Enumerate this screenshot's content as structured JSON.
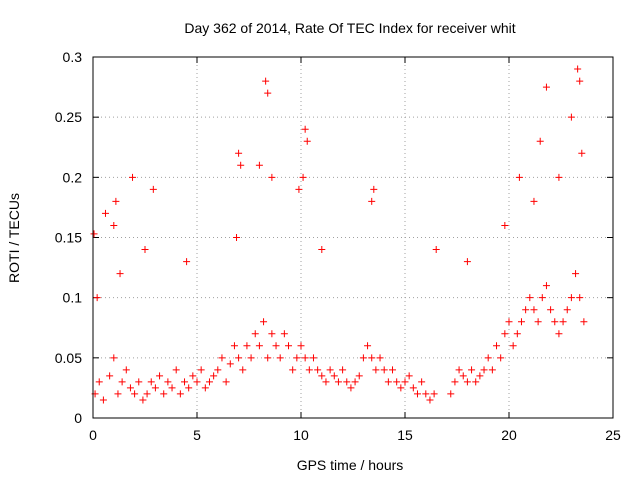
{
  "chart_data": {
    "type": "scatter",
    "title": "Day 362 of 2014, Rate Of TEC Index for receiver whit",
    "xlabel": "GPS time / hours",
    "ylabel": "ROTI / TECUs",
    "xlim": [
      0,
      25
    ],
    "ylim": [
      0,
      0.3
    ],
    "x_ticks": [
      0,
      5,
      10,
      15,
      20,
      25
    ],
    "x_tick_labels": [
      "0",
      "5",
      "10",
      "15",
      "20",
      "25"
    ],
    "y_ticks": [
      0,
      0.05,
      0.1,
      0.15,
      0.2,
      0.25,
      0.3
    ],
    "y_tick_labels": [
      "0",
      "0.05",
      "0.1",
      "0.15",
      "0.2",
      "0.25",
      "0.3"
    ],
    "grid": true,
    "marker": "+",
    "series": [
      {
        "name": "ROTI",
        "color": "#ff0000",
        "x": [
          0.1,
          0.3,
          0.5,
          0.8,
          1.0,
          1.2,
          1.4,
          1.6,
          1.8,
          2.0,
          2.2,
          2.4,
          2.6,
          2.8,
          3.0,
          3.2,
          3.4,
          3.6,
          3.8,
          4.0,
          4.2,
          4.4,
          4.6,
          4.8,
          5.0,
          5.2,
          5.4,
          5.6,
          5.8,
          6.0,
          6.2,
          6.4,
          6.6,
          6.8,
          7.0,
          7.2,
          7.4,
          7.6,
          7.8,
          8.0,
          8.2,
          8.4,
          8.6,
          8.8,
          9.0,
          9.2,
          9.4,
          9.6,
          9.8,
          10.0,
          10.2,
          10.4,
          10.6,
          10.8,
          11.0,
          11.2,
          11.4,
          11.6,
          11.8,
          12.0,
          12.2,
          12.4,
          12.6,
          12.8,
          13.0,
          13.2,
          13.4,
          13.6,
          13.8,
          14.0,
          14.2,
          14.4,
          14.6,
          14.8,
          15.0,
          15.2,
          15.4,
          15.6,
          15.8,
          16.0,
          16.2,
          16.4,
          17.2,
          17.4,
          17.6,
          17.8,
          18.0,
          18.2,
          18.4,
          18.6,
          18.8,
          19.0,
          19.2,
          19.4,
          19.6,
          19.8,
          20.0,
          20.2,
          20.4,
          20.6,
          20.8,
          21.0,
          21.2,
          21.4,
          21.6,
          21.8,
          22.0,
          22.2,
          22.4,
          22.6,
          22.8,
          23.0,
          23.2,
          23.4,
          23.6,
          0.05,
          0.6,
          1.1,
          1.9,
          2.9,
          7.0,
          7.1,
          8.3,
          8.4,
          10.2,
          10.3,
          13.5,
          21.5,
          21.8,
          23.3,
          23.4,
          0.2,
          1.0,
          1.3,
          2.5,
          4.5,
          6.9,
          8.0,
          8.6,
          9.9,
          10.1,
          11.0,
          13.4,
          16.5,
          18.0,
          19.8,
          20.5,
          21.2,
          22.4,
          23.0,
          23.5
        ],
        "y": [
          0.02,
          0.03,
          0.015,
          0.035,
          0.05,
          0.02,
          0.03,
          0.04,
          0.025,
          0.02,
          0.03,
          0.015,
          0.02,
          0.03,
          0.025,
          0.035,
          0.02,
          0.03,
          0.025,
          0.04,
          0.02,
          0.03,
          0.025,
          0.035,
          0.03,
          0.04,
          0.025,
          0.03,
          0.035,
          0.04,
          0.05,
          0.03,
          0.045,
          0.06,
          0.05,
          0.04,
          0.06,
          0.05,
          0.07,
          0.06,
          0.08,
          0.05,
          0.07,
          0.06,
          0.05,
          0.07,
          0.06,
          0.04,
          0.05,
          0.06,
          0.05,
          0.04,
          0.05,
          0.04,
          0.035,
          0.03,
          0.04,
          0.035,
          0.03,
          0.04,
          0.03,
          0.025,
          0.03,
          0.035,
          0.05,
          0.06,
          0.05,
          0.04,
          0.05,
          0.04,
          0.03,
          0.04,
          0.03,
          0.025,
          0.03,
          0.035,
          0.025,
          0.02,
          0.03,
          0.02,
          0.015,
          0.02,
          0.02,
          0.03,
          0.04,
          0.035,
          0.03,
          0.04,
          0.03,
          0.035,
          0.04,
          0.05,
          0.04,
          0.06,
          0.05,
          0.07,
          0.08,
          0.06,
          0.07,
          0.08,
          0.09,
          0.1,
          0.09,
          0.08,
          0.1,
          0.11,
          0.09,
          0.08,
          0.07,
          0.08,
          0.09,
          0.1,
          0.12,
          0.1,
          0.08,
          0.153,
          0.17,
          0.18,
          0.2,
          0.19,
          0.22,
          0.21,
          0.28,
          0.27,
          0.24,
          0.23,
          0.19,
          0.23,
          0.275,
          0.29,
          0.28,
          0.1,
          0.16,
          0.12,
          0.14,
          0.13,
          0.15,
          0.21,
          0.2,
          0.19,
          0.2,
          0.14,
          0.18,
          0.14,
          0.13,
          0.16,
          0.2,
          0.18,
          0.2,
          0.25,
          0.22
        ]
      }
    ]
  }
}
